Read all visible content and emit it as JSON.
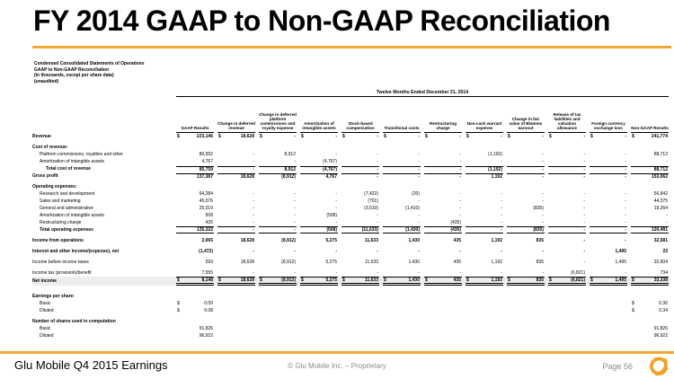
{
  "title": "FY 2014 GAAP to Non-GAAP Reconciliation",
  "subtitle_lines": [
    "Condensed Consolidated Statements of Operations",
    "GAAP to Non-GAAP Reconciliation",
    "(in thousands, except per share data)",
    "(unaudited)"
  ],
  "colors": {
    "accent_gold": "#F1A833",
    "logo_orange": "#F6A01E",
    "footer_gray": "#8a8a8a"
  },
  "table": {
    "period_header": "Twelve Months Ended December 31, 2014",
    "columns": [
      "GAAP Results",
      "Change in deferred revenue",
      "Change in deferred platform commissions and royalty expense",
      "Amortization of intangible assets",
      "Stock-based compensation",
      "Transitional costs",
      "Restructuring charge",
      "Non-cash warrant expense",
      "Change in fair value of Blammo earnout",
      "Release of tax liabilities and valuation allowance",
      "Foreign currency exchange loss",
      "Non-GAAP Results"
    ],
    "rows": [
      {
        "label": "Revenue",
        "indent": 0,
        "bold": true,
        "dollar": true,
        "values": [
          "223,146",
          "18,628",
          "-",
          "-",
          "-",
          "-",
          "-",
          "-",
          "-",
          "-",
          "-",
          "241,774"
        ]
      },
      {
        "type": "spacer"
      },
      {
        "label": "Cost of revenue:",
        "indent": 0,
        "bold": true,
        "type": "section"
      },
      {
        "label": "Platform commissions, royalties and other",
        "indent": 1,
        "values": [
          "80,992",
          "-",
          "8,912",
          "-",
          "-",
          "-",
          "-",
          "(1,192)",
          "-",
          "-",
          "-",
          "88,712"
        ]
      },
      {
        "label": "Amortization of intangible assets",
        "indent": 1,
        "values": [
          "4,767",
          "-",
          "-",
          "(4,767)",
          "-",
          "-",
          "-",
          "-",
          "-",
          "-",
          "-",
          "-"
        ]
      },
      {
        "label": "Total cost of revenue",
        "indent": 2,
        "bold": true,
        "border": "top",
        "values": [
          "85,759",
          "-",
          "8,912",
          "(4,767)",
          "-",
          "-",
          "-",
          "(1,192)",
          "-",
          "-",
          "-",
          "88,712"
        ]
      },
      {
        "label": "Gross profit",
        "indent": 0,
        "bold": true,
        "border": "top",
        "values": [
          "137,387",
          "18,628",
          "(8,912)",
          "4,767",
          "-",
          "-",
          "-",
          "1,192",
          "-",
          "-",
          "-",
          "153,062"
        ]
      },
      {
        "type": "spacer"
      },
      {
        "label": "Operating expenses:",
        "indent": 0,
        "bold": true,
        "type": "section"
      },
      {
        "label": "Research and development",
        "indent": 1,
        "values": [
          "64,284",
          "-",
          "-",
          "-",
          "(7,422)",
          "(20)",
          "-",
          "-",
          "-",
          "-",
          "-",
          "56,842"
        ]
      },
      {
        "label": "Sales and marketing",
        "indent": 1,
        "values": [
          "45,076",
          "-",
          "-",
          "-",
          "(701)",
          "-",
          "-",
          "-",
          "-",
          "-",
          "-",
          "44,375"
        ]
      },
      {
        "label": "General and administrative",
        "indent": 1,
        "values": [
          "25,019",
          "-",
          "-",
          "-",
          "(3,510)",
          "(1,410)",
          "-",
          "-",
          "(835)",
          "-",
          "-",
          "19,264"
        ]
      },
      {
        "label": "Amortization of intangible assets",
        "indent": 1,
        "values": [
          "508",
          "-",
          "-",
          "(508)",
          "-",
          "-",
          "-",
          "-",
          "-",
          "-",
          "-",
          "-"
        ]
      },
      {
        "label": "Restructuring charge",
        "indent": 1,
        "values": [
          "435",
          "-",
          "-",
          "-",
          "-",
          "-",
          "(435)",
          "-",
          "-",
          "-",
          "-",
          "-"
        ]
      },
      {
        "label": "Total operating expenses",
        "indent": 1,
        "bold": true,
        "border": "topbottom",
        "values": [
          "135,322",
          "-",
          "-",
          "(508)",
          "(11,633)",
          "(1,430)",
          "(435)",
          "-",
          "(835)",
          "-",
          "-",
          "120,481"
        ]
      },
      {
        "type": "spacer"
      },
      {
        "label": "Income from operations",
        "indent": 0,
        "bold": true,
        "values": [
          "2,065",
          "18,628",
          "(8,912)",
          "5,275",
          "11,633",
          "1,430",
          "435",
          "1,192",
          "835",
          "-",
          "-",
          "32,581"
        ]
      },
      {
        "type": "spacer"
      },
      {
        "label": "Interest and other income/(expense), net",
        "indent": 0,
        "bold": true,
        "values": [
          "(1,472)",
          "-",
          "-",
          "-",
          "-",
          "-",
          "-",
          "-",
          "-",
          "-",
          "1,495",
          "23"
        ]
      },
      {
        "type": "spacer"
      },
      {
        "label": "Income before income taxes",
        "indent": 0,
        "values": [
          "593",
          "18,628",
          "(8,912)",
          "5,275",
          "11,633",
          "1,430",
          "435",
          "1,192",
          "835",
          "-",
          "1,495",
          "32,604"
        ]
      },
      {
        "type": "spacer"
      },
      {
        "label": "Income tax (provision)/benefit",
        "indent": 0,
        "values": [
          "7,555",
          "-",
          "-",
          "-",
          "-",
          "-",
          "-",
          "-",
          "-",
          "(6,821)",
          "-",
          "734"
        ]
      },
      {
        "label": "Net income",
        "indent": 0,
        "bold": true,
        "dollar": true,
        "shaded": true,
        "border": "netincome",
        "values": [
          "8,148",
          "18,628",
          "(8,912)",
          "5,275",
          "11,633",
          "1,430",
          "435",
          "1,192",
          "835",
          "(6,821)",
          "1,495",
          "33,338"
        ]
      },
      {
        "type": "spacer",
        "size": 8
      },
      {
        "label": "Earnings per share:",
        "indent": 0,
        "bold": true,
        "type": "section"
      },
      {
        "label": "Basic",
        "indent": 1,
        "dollar": true,
        "values": [
          "0.09",
          "",
          "",
          "",
          "",
          "",
          "",
          "",
          "",
          "",
          "",
          "0.36"
        ]
      },
      {
        "label": "Diluted",
        "indent": 1,
        "dollar": true,
        "values": [
          "0.08",
          "",
          "",
          "",
          "",
          "",
          "",
          "",
          "",
          "",
          "",
          "0.34"
        ]
      },
      {
        "type": "spacer"
      },
      {
        "label": "Number of shares used in computation",
        "indent": 0,
        "bold": true,
        "type": "section"
      },
      {
        "label": "Basic",
        "indent": 1,
        "values": [
          "91,826",
          "",
          "",
          "",
          "",
          "",
          "",
          "",
          "",
          "",
          "",
          "91,826"
        ]
      },
      {
        "label": "Diluted",
        "indent": 1,
        "values": [
          "96,922",
          "",
          "",
          "",
          "",
          "",
          "",
          "",
          "",
          "",
          "",
          "96,922"
        ]
      }
    ]
  },
  "footer": {
    "left": "Glu Mobile Q4 2015 Earnings",
    "center": "© Glu Mobile Inc. – Proprietary",
    "right": "Page 56"
  }
}
